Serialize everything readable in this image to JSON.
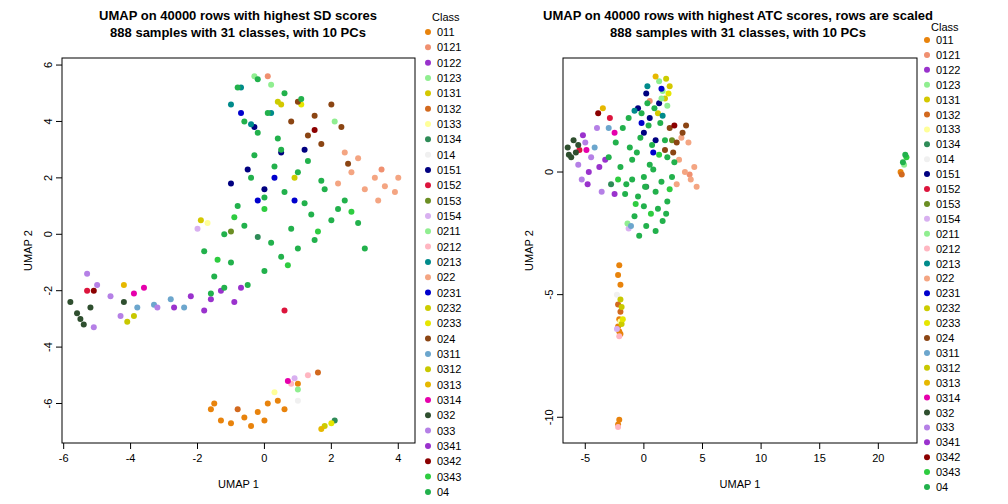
{
  "chart_data": [
    {
      "type": "scatter",
      "title": "UMAP on 40000 rows with highest SD scores",
      "subtitle": "888 samples with 31 classes, with 10 PCs",
      "x_label": "UMAP 1",
      "y_label": "UMAP 2",
      "legend_title": "Class",
      "marker": "circle",
      "xlim": [
        -6.05,
        4.5
      ],
      "ylim": [
        -7.4,
        6.25
      ],
      "xticks": [
        -6,
        -4,
        -2,
        0,
        2,
        4
      ],
      "yticks": [
        -6,
        -4,
        -2,
        0,
        2,
        4,
        6
      ],
      "series": [
        {
          "name": "011",
          "color": "#E8830C",
          "x": [
            -1.6,
            -1.3,
            -1,
            -0.6,
            -0.2,
            0.1,
            0.4,
            0.6,
            -0.4,
            0,
            1,
            -1.5
          ],
          "values": [
            -6.2,
            -6.6,
            -6.7,
            -6.5,
            -6.3,
            -6,
            -5.9,
            -6.2,
            -6.8,
            -6.6,
            -5.3,
            -6.0
          ]
        },
        {
          "name": "0121",
          "color": "#F09070",
          "x": [
            3.5,
            0.1
          ],
          "values": [
            2.3,
            5.6
          ]
        },
        {
          "name": "0122",
          "color": "#9932CC",
          "x": [
            -1.6,
            -0.7
          ],
          "values": [
            -2.3,
            -1.9
          ]
        },
        {
          "name": "0123",
          "color": "#90EE90",
          "x": [
            -0.3,
            0.2
          ],
          "values": [
            5.6,
            5.3
          ]
        },
        {
          "name": "0131",
          "color": "#D4C800",
          "x": [
            0.5,
            -1.9
          ],
          "values": [
            4.6,
            0.5
          ]
        },
        {
          "name": "0132",
          "color": "#D2691E",
          "x": [
            1.6,
            -0.8
          ],
          "values": [
            -4.9,
            -6.2
          ]
        },
        {
          "name": "0133",
          "color": "#FFFF99",
          "x": [
            0.3,
            -1.7
          ],
          "values": [
            -5.6,
            0.4
          ]
        },
        {
          "name": "0134",
          "color": "#2E8B57",
          "x": [
            2.1,
            -0.2
          ],
          "values": [
            -6.6,
            -0.1
          ]
        },
        {
          "name": "014",
          "color": "#F0F0F0",
          "x": [
            1.0
          ],
          "values": [
            -5.9
          ]
        },
        {
          "name": "0151",
          "color": "#000080",
          "x": [
            -1,
            -0.5,
            0,
            0.5,
            1.2,
            -0.3
          ],
          "values": [
            1.8,
            2.3,
            1.6,
            2.9,
            3.0,
            3.8
          ]
        },
        {
          "name": "0152",
          "color": "#DC143C",
          "x": [
            0.6,
            -5.3
          ],
          "values": [
            -2.7,
            -2.0
          ]
        },
        {
          "name": "0153",
          "color": "#6B8E23",
          "x": [
            -1.0
          ],
          "values": [
            0.1
          ]
        },
        {
          "name": "0154",
          "color": "#D8B0F0",
          "x": [
            -2.0,
            0.9
          ],
          "values": [
            0.2,
            -5.1
          ]
        },
        {
          "name": "0211",
          "color": "#90EE90",
          "x": [
            2.1,
            1.0
          ],
          "values": [
            4.0,
            -5.5
          ]
        },
        {
          "name": "0212",
          "color": "#FFB6C1",
          "x": [
            0.8,
            1.3
          ],
          "values": [
            -5.3,
            -5.0
          ]
        },
        {
          "name": "0213",
          "color": "#008B8B",
          "x": [
            -1,
            -0.7,
            -0.4,
            0.2
          ],
          "values": [
            4.6,
            5.2,
            3.9,
            4.3
          ]
        },
        {
          "name": "022",
          "color": "#F4A582",
          "x": [
            2.2,
            2.6,
            3,
            3.3,
            3.6,
            3.9,
            2.8,
            3.4,
            2.4,
            4.0
          ],
          "values": [
            1.8,
            2.2,
            1.6,
            2,
            1.7,
            1.5,
            2.7,
            1.2,
            2.9,
            2.0
          ]
        },
        {
          "name": "0231",
          "color": "#0000CD",
          "x": [
            -0.7,
            0.3,
            0.9,
            -0.2
          ],
          "values": [
            4.3,
            2.0,
            1.2,
            1.2
          ]
        },
        {
          "name": "0232",
          "color": "#CCCC00",
          "x": [
            0.4,
            1.8,
            0.9
          ],
          "values": [
            4.7,
            -6.8,
            2.0
          ]
        },
        {
          "name": "0233",
          "color": "#E6E600",
          "x": [
            1.1,
            2.0
          ],
          "values": [
            4.6,
            -6.7
          ]
        },
        {
          "name": "024",
          "color": "#8B4513",
          "x": [
            1,
            1.5,
            2,
            2.3,
            1.7,
            2.5,
            0.8,
            1.3
          ],
          "values": [
            4.7,
            4.2,
            4.6,
            3.8,
            3.2,
            2.5,
            4.0,
            3.5
          ]
        },
        {
          "name": "0311",
          "color": "#6CA6CD",
          "x": [
            -3.8,
            -3.3,
            -2.8,
            -2.4
          ],
          "values": [
            -2.6,
            -2.5,
            -2.3,
            -2.6
          ]
        },
        {
          "name": "0312",
          "color": "#C8C800",
          "x": [
            -4.1,
            -3.9
          ],
          "values": [
            -3.1,
            -2.9
          ]
        },
        {
          "name": "0313",
          "color": "#E6B800",
          "x": [
            -4.2,
            1.7
          ],
          "values": [
            -1.8,
            -6.9
          ]
        },
        {
          "name": "0314",
          "color": "#E600AC",
          "x": [
            -3.6,
            -3.9,
            0.7
          ],
          "values": [
            -1.9,
            -2.1,
            -5.2
          ]
        },
        {
          "name": "032",
          "color": "#2F4F2F",
          "x": [
            -5.8,
            -5.6,
            -5.4,
            -5.2,
            -5.5,
            -4.2
          ],
          "values": [
            -2.4,
            -2.8,
            -3.2,
            -2.6,
            -3.0,
            -2.4
          ]
        },
        {
          "name": "033",
          "color": "#B580E6",
          "x": [
            -5.3,
            -5,
            -4.6,
            -4.3,
            -5.1,
            -3.2
          ],
          "values": [
            -1.4,
            -1.8,
            -2.2,
            -2.9,
            -3.3,
            -2.6
          ]
        },
        {
          "name": "0341",
          "color": "#9A32CD",
          "x": [
            -2.7,
            -2.2,
            -1.8,
            -1.3,
            -0.9
          ],
          "values": [
            -2.6,
            -2.2,
            -2.7,
            -2.0,
            -2.4
          ]
        },
        {
          "name": "0342",
          "color": "#8B0000",
          "x": [
            -5.1,
            1.5
          ],
          "values": [
            -2.0,
            3.7
          ]
        },
        {
          "name": "0343",
          "color": "#2ECC40",
          "x": [
            -0.9,
            0.7,
            1.6,
            -1.4,
            2.6,
            0.0
          ],
          "values": [
            0.6,
            -1.1,
            0.1,
            -0.9,
            0.8,
            0.9
          ]
        },
        {
          "name": "04",
          "color": "#22B14C",
          "x": [
            -1.5,
            -1,
            -0.5,
            0,
            0.5,
            1,
            1.5,
            2,
            -1.2,
            -0.6,
            0.2,
            0.8,
            1.4,
            2.2,
            2.8,
            -0.8,
            0,
            0.6,
            1.2,
            1.8,
            -0.4,
            0.3,
            1,
            1.7,
            -1.8,
            -1.2,
            -0.3,
            0.5,
            1.3,
            2.4,
            3,
            -0.2,
            0.4,
            -0.6,
            0.1,
            -0.8,
            -0.2,
            0.6,
            1.1,
            -1.6
          ],
          "values": [
            -1.5,
            -1,
            -1.8,
            -1.3,
            -0.8,
            -0.5,
            -0.2,
            0.5,
            0,
            0.3,
            -0.3,
            0.2,
            0.7,
            0.9,
            0.4,
            1,
            1.3,
            1.5,
            1.1,
            1.6,
            2,
            2.4,
            2.2,
            1.9,
            -0.6,
            -1.9,
            2.8,
            3,
            2.6,
            1.2,
            -0.5,
            3.6,
            3.4,
            4,
            4.3,
            5.2,
            5.5,
            5.0,
            4.8,
            -2.1
          ]
        }
      ]
    },
    {
      "type": "scatter",
      "title": "UMAP on 40000 rows with highest ATC scores, rows are scaled",
      "subtitle": "888 samples with 31 classes, with 10 PCs",
      "x_label": "UMAP 1",
      "y_label": "UMAP 2",
      "legend_title": "Class",
      "marker": "circle",
      "xlim": [
        -6.9,
        23.3
      ],
      "ylim": [
        -11.05,
        4.65
      ],
      "xticks": [
        -5,
        0,
        5,
        10,
        15,
        20
      ],
      "yticks": [
        -10,
        -5,
        0
      ],
      "series": [
        {
          "name": "011",
          "color": "#E8830C",
          "x": [
            -2.1,
            -2.2,
            -2.0,
            -2.1,
            -2.2,
            -2.0,
            -2.1,
            -2.1,
            -2.2,
            21.9
          ],
          "values": [
            -3.8,
            -4.2,
            -4.6,
            -6.0,
            -6.3,
            -6.6,
            -6.5,
            -10.1,
            -10.3,
            0.0
          ]
        },
        {
          "name": "0121",
          "color": "#F09070",
          "x": [
            3.9,
            0.5
          ],
          "values": [
            -0.1,
            2.9
          ]
        },
        {
          "name": "0122",
          "color": "#9932CC",
          "x": [
            -4.8,
            -3.8
          ],
          "values": [
            -0.5,
            0.2
          ]
        },
        {
          "name": "0123",
          "color": "#90EE90",
          "x": [
            1.6,
            2.0,
            1.3,
            22.2
          ],
          "values": [
            3.3,
            2.7,
            3.7,
            0.3
          ]
        },
        {
          "name": "0131",
          "color": "#D4C800",
          "x": [
            1.8,
            2.2,
            1.2
          ],
          "values": [
            3.0,
            3.5,
            2.4
          ]
        },
        {
          "name": "0132",
          "color": "#D2691E",
          "x": [
            -2.2,
            -2.0,
            22.0
          ],
          "values": [
            -5.4,
            -5.7,
            -0.1
          ]
        },
        {
          "name": "0133",
          "color": "#FFFF99",
          "x": [
            -2.0
          ],
          "values": [
            -6.1
          ]
        },
        {
          "name": "0134",
          "color": "#2E8B57",
          "x": [
            0.2,
            -2.8
          ],
          "values": [
            -0.6,
            -0.5
          ]
        },
        {
          "name": "014",
          "color": "#F0F0F0",
          "x": [
            -2.3
          ],
          "values": [
            -5.0
          ]
        },
        {
          "name": "0151",
          "color": "#000080",
          "x": [
            0,
            0.5,
            1,
            0.2,
            -0.5,
            1.3
          ],
          "values": [
            1.6,
            2.2,
            1.3,
            3.2,
            2.6,
            2.8
          ]
        },
        {
          "name": "0152",
          "color": "#DC143C",
          "x": [
            -5.5,
            -2.9
          ],
          "values": [
            0.9,
            2.2
          ]
        },
        {
          "name": "0153",
          "color": "#6B8E23",
          "x": [
            2.4
          ],
          "values": [
            1.3
          ]
        },
        {
          "name": "0154",
          "color": "#D8B0F0",
          "x": [
            -1.3,
            -2.3
          ],
          "values": [
            -2.3,
            -6.4
          ]
        },
        {
          "name": "0211",
          "color": "#90EE90",
          "x": [
            1.5,
            -1.4
          ],
          "values": [
            3.0,
            -2.1
          ]
        },
        {
          "name": "0212",
          "color": "#FFB6C1",
          "x": [
            -2.2,
            -2.1
          ],
          "values": [
            -10.4,
            -6.7
          ]
        },
        {
          "name": "0213",
          "color": "#008B8B",
          "x": [
            0.3,
            1.6,
            -0.8
          ],
          "values": [
            3.5,
            2.3,
            2.5
          ]
        },
        {
          "name": "022",
          "color": "#F4A582",
          "x": [
            3,
            3.5,
            4,
            4.3,
            3.8,
            2.8,
            3.2,
            4.5
          ],
          "values": [
            0.5,
            0,
            -0.3,
            0.2,
            1.2,
            -0.5,
            1.4,
            -0.6
          ]
        },
        {
          "name": "0231",
          "color": "#0000CD",
          "x": [
            -0.2,
            0.8,
            1.5
          ],
          "values": [
            2.0,
            0.8,
            3.4
          ]
        },
        {
          "name": "0232",
          "color": "#CCCC00",
          "x": [
            1.9,
            -1.9
          ],
          "values": [
            3.8,
            -6.2
          ]
        },
        {
          "name": "0233",
          "color": "#E6E600",
          "x": [
            2.1,
            -1.8
          ],
          "values": [
            3.2,
            -6.0
          ]
        },
        {
          "name": "024",
          "color": "#8B4513",
          "x": [
            2.2,
            2.8,
            3.3,
            2.5,
            3.6,
            1.8
          ],
          "values": [
            1.8,
            1.2,
            1.6,
            0.8,
            1.9,
            0.9
          ]
        },
        {
          "name": "0311",
          "color": "#6CA6CD",
          "x": [
            -4.2,
            -3,
            -1.1
          ],
          "values": [
            1.0,
            1.8,
            -2.2
          ]
        },
        {
          "name": "0312",
          "color": "#C8C800",
          "x": [
            -2.0,
            -1.9
          ],
          "values": [
            -5.2,
            -5.5
          ]
        },
        {
          "name": "0313",
          "color": "#E6B800",
          "x": [
            -3.5,
            1.0
          ],
          "values": [
            2.6,
            3.9
          ]
        },
        {
          "name": "0314",
          "color": "#E600AC",
          "x": [
            -4.9,
            -2.5
          ],
          "values": [
            0.9,
            1.6
          ]
        },
        {
          "name": "032",
          "color": "#2F4F2F",
          "x": [
            -6.5,
            -6.2,
            -6,
            -5.8,
            -6.4,
            -5.6
          ],
          "values": [
            1.0,
            0.6,
            1.3,
            0.8,
            0.7,
            1.1
          ]
        },
        {
          "name": "033",
          "color": "#B580E6",
          "x": [
            -5.6,
            -5,
            -4.5,
            -4,
            -5.3,
            -3.6
          ],
          "values": [
            0.3,
            1.2,
            0.6,
            1.8,
            -0.3,
            -0.8
          ]
        },
        {
          "name": "0341",
          "color": "#9A32CD",
          "x": [
            -4.7,
            -3.3,
            -2.5,
            -5.2
          ],
          "values": [
            0.0,
            0.5,
            -0.9,
            1.5
          ]
        },
        {
          "name": "0342",
          "color": "#8B0000",
          "x": [
            -3.9,
            2.6
          ],
          "values": [
            2.4,
            1.9
          ]
        },
        {
          "name": "0343",
          "color": "#2ECC40",
          "x": [
            -0.7,
            1.3,
            2.2,
            -2.2,
            0.6,
            22.4
          ],
          "values": [
            -1.3,
            0.7,
            -0.7,
            -0.3,
            -1.7,
            0.6
          ]
        },
        {
          "name": "04",
          "color": "#22B14C",
          "x": [
            -2,
            -1.5,
            -1,
            -0.5,
            0,
            0.5,
            1,
            1.5,
            2,
            -1.2,
            -0.3,
            0.7,
            1.8,
            -0.8,
            0.2,
            1.2,
            2.4,
            -1.6,
            -0.6,
            0.4,
            1.4,
            2.6,
            -0.2,
            0.8,
            -1,
            0,
            1,
            2,
            -2.4,
            -3,
            -1.8,
            0.3,
            1.6,
            -0.4,
            0.9,
            -1.3,
            1.9,
            0.1,
            22.3,
            22.1
          ],
          "values": [
            0.2,
            -0.5,
            0.5,
            -1,
            -0.2,
            0.3,
            -0.8,
            -0.4,
            0.6,
            1,
            1.4,
            1.1,
            1.3,
            -1.8,
            -2.2,
            -1.5,
            -0.2,
            -0.9,
            0.8,
            1.9,
            2,
            0.4,
            2.4,
            0.1,
            -0.3,
            -1.4,
            -2.4,
            -1.2,
            1.2,
            0.6,
            1.8,
            2.8,
            -2.0,
            -2.6,
            2.6,
            2.2,
            -1.7,
            -0.6,
            0.7,
            0.4
          ]
        }
      ]
    }
  ]
}
